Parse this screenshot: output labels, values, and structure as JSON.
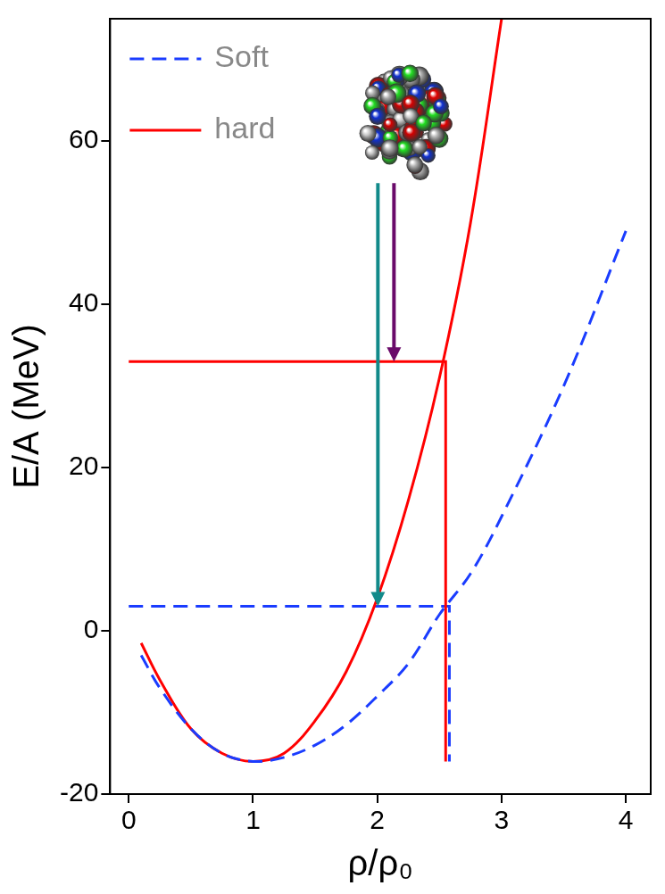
{
  "chart_data": {
    "type": "line",
    "x_label": "ρ/ρ₀",
    "y_label": "E/A (MeV)",
    "xlim": [
      -0.15,
      4.2
    ],
    "xticks": [
      0,
      1,
      2,
      3,
      4
    ],
    "ylim": [
      -20,
      75
    ],
    "yticks": [
      -20,
      0,
      20,
      40,
      60
    ],
    "grid": false,
    "legend": "top-left",
    "series": [
      {
        "name": "Soft",
        "color": "#1a3cff",
        "line_style": "dashed",
        "x": [
          0.1,
          0.25,
          0.5,
          0.75,
          1.0,
          1.25,
          1.5,
          1.75,
          2.0,
          2.25,
          2.5,
          2.75,
          3.0,
          3.5,
          4.0
        ],
        "values": [
          -3,
          -7,
          -12,
          -15,
          -16,
          -15.5,
          -14,
          -11.5,
          -8,
          -4,
          2,
          7,
          14,
          30,
          49
        ]
      },
      {
        "name": "hard",
        "color": "#ff0000",
        "line_style": "solid",
        "x": [
          0.1,
          0.25,
          0.5,
          0.75,
          1.0,
          1.25,
          1.5,
          1.75,
          2.0,
          2.25,
          2.5,
          2.75,
          3.0
        ],
        "values": [
          -1.5,
          -6,
          -12,
          -15,
          -16,
          -15,
          -11,
          -5,
          4,
          16,
          31,
          50,
          75
        ]
      }
    ],
    "reference_lines": [
      {
        "color": "#ff0000",
        "line_style": "solid",
        "x": [
          0,
          2.55,
          2.55
        ],
        "values": [
          33,
          33,
          -16
        ]
      },
      {
        "color": "#1a3cff",
        "line_style": "dashed",
        "x": [
          0,
          2.58,
          2.58
        ],
        "values": [
          3,
          3,
          -16
        ]
      }
    ]
  }
}
